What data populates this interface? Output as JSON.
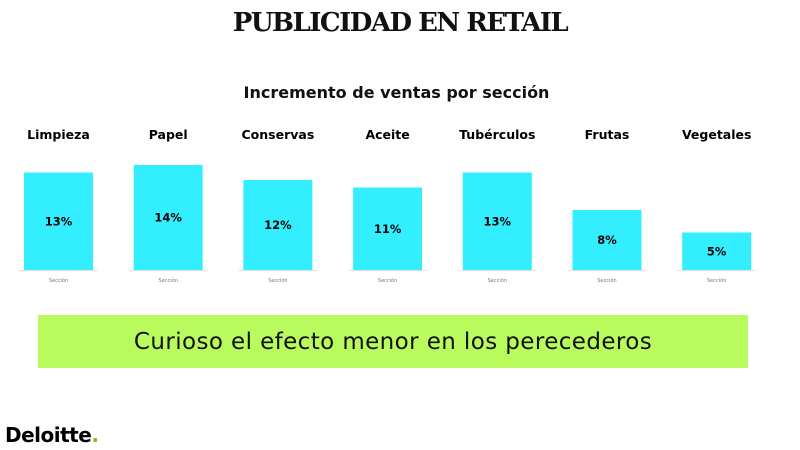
{
  "page": {
    "title": "PUBLICIDAD EN RETAIL",
    "callout": "Curioso el efecto menor en los perecederos",
    "brand": "Deloitte",
    "brand_dot": ".",
    "colors": {
      "bar": "#33eeff",
      "callout": "#b9fa5c",
      "brand_dot": "#86bc25"
    }
  },
  "chart_data": {
    "type": "bar",
    "title": "Incremento de ventas por sección",
    "categories": [
      "Limpieza",
      "Papel",
      "Conservas",
      "Aceite",
      "Tubérculos",
      "Frutas",
      "Vegetales"
    ],
    "values": [
      13,
      14,
      12,
      11,
      13,
      8,
      5
    ],
    "value_labels": [
      "13%",
      "14%",
      "12%",
      "11%",
      "13%",
      "8%",
      "5%"
    ],
    "axis_labels": [
      "Sección",
      "Sección",
      "Sección",
      "Sección",
      "Sección",
      "Sección",
      "Sección"
    ],
    "unit": "%",
    "ylim": [
      0,
      14
    ],
    "grid": false
  }
}
